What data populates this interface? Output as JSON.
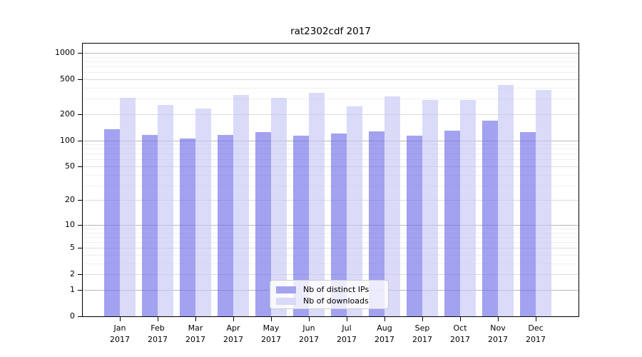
{
  "chart_data": {
    "type": "bar",
    "title": "rat2302cdf 2017",
    "categories": [
      "Jan 2017",
      "Feb 2017",
      "Mar 2017",
      "Apr 2017",
      "May 2017",
      "Jun 2017",
      "Jul 2017",
      "Aug 2017",
      "Sep 2017",
      "Oct 2017",
      "Nov 2017",
      "Dec 2017"
    ],
    "series": [
      {
        "name": "Nb of distinct IPs",
        "bar_color": "rgba(107,107,231,0.63)",
        "swatch_color": "#a4a4ee",
        "values": [
          133,
          115,
          105,
          115,
          125,
          114,
          119,
          126,
          113,
          130,
          167,
          124
        ]
      },
      {
        "name": "Nb of downloads",
        "bar_color": "rgba(196,196,246,0.63)",
        "swatch_color": "#d9d9f8",
        "values": [
          309,
          256,
          233,
          332,
          308,
          352,
          247,
          320,
          288,
          291,
          432,
          379
        ]
      }
    ],
    "yscale": "log1p",
    "ylim": [
      0,
      1274
    ],
    "yticks": [
      0,
      1,
      2,
      5,
      10,
      20,
      50,
      100,
      200,
      500,
      1000
    ],
    "yticks_minor": [
      3,
      4,
      6,
      7,
      8,
      9,
      30,
      40,
      60,
      70,
      80,
      90,
      300,
      400,
      600,
      700,
      800,
      900
    ],
    "grid": true,
    "legend_position": "lower-center",
    "colors": {
      "axis_spine": "#000000",
      "grid_major": "#b9b9b9",
      "grid_labeled": "#dcdcdc",
      "grid_minor": "#efefef",
      "tick_label": "#000000"
    }
  }
}
